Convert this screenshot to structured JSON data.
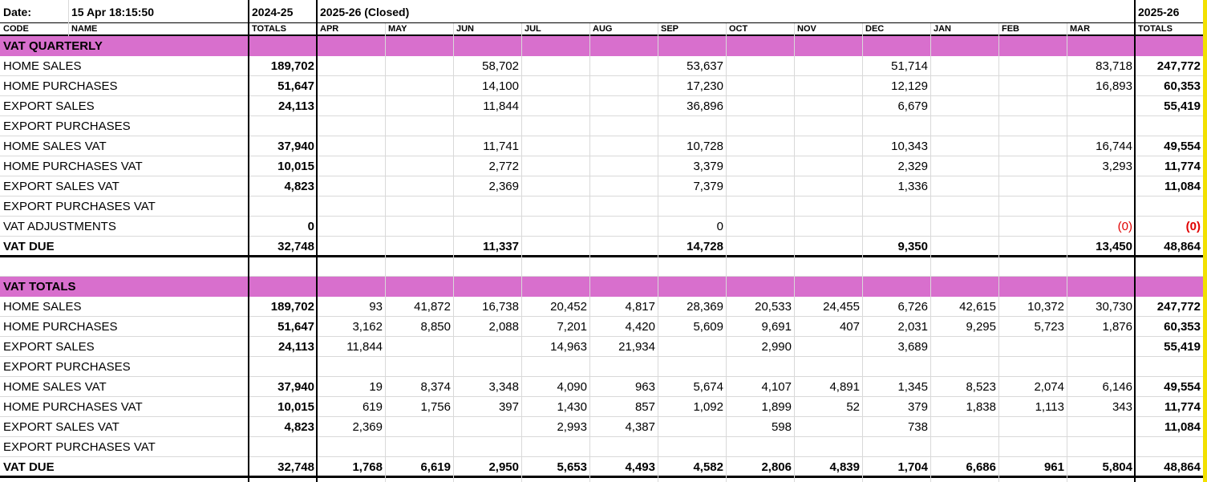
{
  "header": {
    "date_label": "Date:",
    "date_value": "15 Apr 18:15:50",
    "prev_year": "2024-25",
    "cur_year_closed": "2025-26 (Closed)",
    "cur_year": "2025-26"
  },
  "subheader": {
    "code": "CODE",
    "name": "NAME",
    "totals_prev": "TOTALS",
    "months": [
      "APR",
      "MAY",
      "JUN",
      "JUL",
      "AUG",
      "SEP",
      "OCT",
      "NOV",
      "DEC",
      "JAN",
      "FEB",
      "MAR"
    ],
    "totals_cur": "TOTALS"
  },
  "sections": [
    {
      "title": "VAT QUARTERLY",
      "rows": [
        {
          "label": "HOME SALES",
          "prev": "189,702",
          "months": [
            "",
            "",
            "58,702",
            "",
            "",
            "53,637",
            "",
            "",
            "51,714",
            "",
            "",
            "83,718"
          ],
          "total": "247,772",
          "bold": false
        },
        {
          "label": "HOME PURCHASES",
          "prev": "51,647",
          "months": [
            "",
            "",
            "14,100",
            "",
            "",
            "17,230",
            "",
            "",
            "12,129",
            "",
            "",
            "16,893"
          ],
          "total": "60,353",
          "bold": false
        },
        {
          "label": "EXPORT SALES",
          "prev": "24,113",
          "months": [
            "",
            "",
            "11,844",
            "",
            "",
            "36,896",
            "",
            "",
            "6,679",
            "",
            "",
            ""
          ],
          "total": "55,419",
          "bold": false
        },
        {
          "label": "EXPORT PURCHASES",
          "prev": "",
          "months": [
            "",
            "",
            "",
            "",
            "",
            "",
            "",
            "",
            "",
            "",
            "",
            ""
          ],
          "total": "",
          "bold": false
        },
        {
          "label": "HOME SALES VAT",
          "prev": "37,940",
          "months": [
            "",
            "",
            "11,741",
            "",
            "",
            "10,728",
            "",
            "",
            "10,343",
            "",
            "",
            "16,744"
          ],
          "total": "49,554",
          "bold": false
        },
        {
          "label": "HOME PURCHASES VAT",
          "prev": "10,015",
          "months": [
            "",
            "",
            "2,772",
            "",
            "",
            "3,379",
            "",
            "",
            "2,329",
            "",
            "",
            "3,293"
          ],
          "total": "11,774",
          "bold": false
        },
        {
          "label": "EXPORT SALES VAT",
          "prev": "4,823",
          "months": [
            "",
            "",
            "2,369",
            "",
            "",
            "7,379",
            "",
            "",
            "1,336",
            "",
            "",
            ""
          ],
          "total": "11,084",
          "bold": false
        },
        {
          "label": "EXPORT PURCHASES VAT",
          "prev": "",
          "months": [
            "",
            "",
            "",
            "",
            "",
            "",
            "",
            "",
            "",
            "",
            "",
            ""
          ],
          "total": "",
          "bold": false
        },
        {
          "label": "VAT ADJUSTMENTS",
          "prev": "0",
          "months": [
            "",
            "",
            "",
            "",
            "",
            "0",
            "",
            "",
            "",
            "",
            "",
            "(0)"
          ],
          "total": "(0)",
          "bold": false
        },
        {
          "label": "VAT DUE",
          "prev": "32,748",
          "months": [
            "",
            "",
            "11,337",
            "",
            "",
            "14,728",
            "",
            "",
            "9,350",
            "",
            "",
            "13,450"
          ],
          "total": "48,864",
          "bold": true
        }
      ]
    },
    {
      "title": "VAT TOTALS",
      "rows": [
        {
          "label": "HOME SALES",
          "prev": "189,702",
          "months": [
            "93",
            "41,872",
            "16,738",
            "20,452",
            "4,817",
            "28,369",
            "20,533",
            "24,455",
            "6,726",
            "42,615",
            "10,372",
            "30,730"
          ],
          "total": "247,772",
          "bold": false
        },
        {
          "label": "HOME PURCHASES",
          "prev": "51,647",
          "months": [
            "3,162",
            "8,850",
            "2,088",
            "7,201",
            "4,420",
            "5,609",
            "9,691",
            "407",
            "2,031",
            "9,295",
            "5,723",
            "1,876"
          ],
          "total": "60,353",
          "bold": false
        },
        {
          "label": "EXPORT SALES",
          "prev": "24,113",
          "months": [
            "11,844",
            "",
            "",
            "14,963",
            "21,934",
            "",
            "2,990",
            "",
            "3,689",
            "",
            "",
            ""
          ],
          "total": "55,419",
          "bold": false
        },
        {
          "label": "EXPORT PURCHASES",
          "prev": "",
          "months": [
            "",
            "",
            "",
            "",
            "",
            "",
            "",
            "",
            "",
            "",
            "",
            ""
          ],
          "total": "",
          "bold": false
        },
        {
          "label": "HOME SALES VAT",
          "prev": "37,940",
          "months": [
            "19",
            "8,374",
            "3,348",
            "4,090",
            "963",
            "5,674",
            "4,107",
            "4,891",
            "1,345",
            "8,523",
            "2,074",
            "6,146"
          ],
          "total": "49,554",
          "bold": false
        },
        {
          "label": "HOME PURCHASES VAT",
          "prev": "10,015",
          "months": [
            "619",
            "1,756",
            "397",
            "1,430",
            "857",
            "1,092",
            "1,899",
            "52",
            "379",
            "1,838",
            "1,113",
            "343"
          ],
          "total": "11,774",
          "bold": false
        },
        {
          "label": "EXPORT SALES VAT",
          "prev": "4,823",
          "months": [
            "2,369",
            "",
            "",
            "2,993",
            "4,387",
            "",
            "598",
            "",
            "738",
            "",
            "",
            ""
          ],
          "total": "11,084",
          "bold": false
        },
        {
          "label": "EXPORT PURCHASES VAT",
          "prev": "",
          "months": [
            "",
            "",
            "",
            "",
            "",
            "",
            "",
            "",
            "",
            "",
            "",
            ""
          ],
          "total": "",
          "bold": false
        },
        {
          "label": "VAT DUE",
          "prev": "32,748",
          "months": [
            "1,768",
            "6,619",
            "2,950",
            "5,653",
            "4,493",
            "4,582",
            "2,806",
            "4,839",
            "1,704",
            "6,686",
            "961",
            "5,804"
          ],
          "total": "48,864",
          "bold": true
        }
      ]
    }
  ],
  "colors": {
    "section_band": "#d86fcd",
    "negative": "#e00000",
    "grid": "#d9d9d9",
    "edge_bar": "#f2e000"
  }
}
